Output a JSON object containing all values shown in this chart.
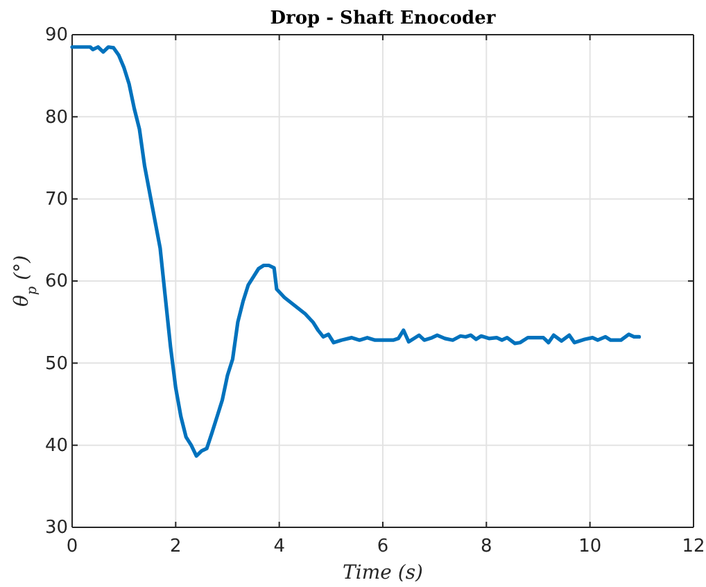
{
  "chart_data": {
    "type": "line",
    "title": "Drop - Shaft Enocoder",
    "xlabel": "Time (s)",
    "ylabel": "θ$_{p}$ (°)",
    "xlim": [
      0,
      12
    ],
    "xticks": [
      0,
      2,
      4,
      6,
      8,
      10,
      12
    ],
    "ylim": [
      30,
      90
    ],
    "yticks": [
      30,
      40,
      50,
      60,
      70,
      80,
      90
    ],
    "grid": true,
    "line_style": "solid",
    "marker": "none",
    "series": [
      {
        "color": "#0072bd",
        "x": [
          0,
          0.35,
          0.4,
          0.5,
          0.6,
          0.7,
          0.8,
          0.9,
          1.0,
          1.1,
          1.2,
          1.3,
          1.4,
          1.55,
          1.7,
          1.8,
          1.9,
          2.0,
          2.1,
          2.2,
          2.3,
          2.4,
          2.5,
          2.6,
          2.7,
          2.8,
          2.9,
          3.0,
          3.1,
          3.2,
          3.3,
          3.4,
          3.5,
          3.6,
          3.7,
          3.8,
          3.9,
          3.95,
          4.1,
          4.3,
          4.5,
          4.65,
          4.75,
          4.85,
          4.95,
          5.05,
          5.2,
          5.4,
          5.55,
          5.7,
          5.85,
          6.2,
          6.3,
          6.4,
          6.5,
          6.6,
          6.7,
          6.8,
          6.95,
          7.05,
          7.2,
          7.35,
          7.5,
          7.6,
          7.7,
          7.8,
          7.9,
          8.05,
          8.2,
          8.3,
          8.4,
          8.55,
          8.65,
          8.8,
          9.1,
          9.2,
          9.3,
          9.45,
          9.6,
          9.7,
          9.9,
          10.05,
          10.15,
          10.3,
          10.4,
          10.6,
          10.75,
          10.85,
          10.95
        ],
        "values": [
          88.5,
          88.5,
          88.2,
          88.5,
          87.9,
          88.5,
          88.4,
          87.5,
          86,
          84,
          81,
          78.5,
          74,
          69,
          64,
          58,
          52,
          47,
          43.5,
          41,
          40,
          38.7,
          39.3,
          39.6,
          41.5,
          43.5,
          45.5,
          48.5,
          50.5,
          55,
          57.5,
          59.5,
          60.5,
          61.5,
          61.9,
          61.9,
          61.6,
          59,
          58,
          57,
          56,
          55,
          54,
          53.2,
          53.5,
          52.5,
          52.8,
          53.1,
          52.8,
          53.1,
          52.8,
          52.8,
          53,
          54,
          52.6,
          53,
          53.4,
          52.8,
          53.1,
          53.4,
          53,
          52.8,
          53.3,
          53.2,
          53.4,
          52.9,
          53.3,
          53,
          53.1,
          52.8,
          53.1,
          52.4,
          52.5,
          53.1,
          53.1,
          52.5,
          53.4,
          52.7,
          53.4,
          52.5,
          52.9,
          53.1,
          52.8,
          53.2,
          52.8,
          52.8,
          53.5,
          53.2,
          53.2
        ]
      }
    ]
  }
}
